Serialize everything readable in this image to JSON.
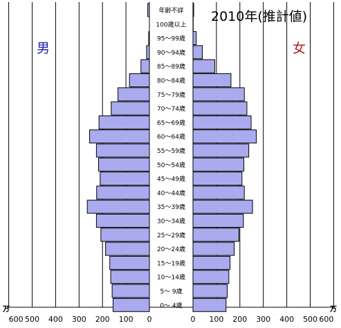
{
  "chart_data": {
    "type": "bar",
    "title": "2010年(推計値)",
    "age_header": "年齢不詳",
    "male_label": "男",
    "female_label": "女",
    "unit": "万",
    "colors": {
      "bar_fill": "#aaaaee",
      "bar_stroke": "#000000",
      "male_label": "#2222aa",
      "female_label": "#aa2222",
      "grid": "#000000"
    },
    "xlim": [
      0,
      600
    ],
    "x_ticks": [
      "600",
      "500",
      "400",
      "300",
      "200",
      "100",
      "0",
      "0",
      "100",
      "200",
      "300",
      "400",
      "500",
      "600"
    ],
    "categories": [
      "年齢不詳",
      "100歳以上",
      "95～99歳",
      "90～94歳",
      "85～89歳",
      "80～84歳",
      "75～79歳",
      "70～74歳",
      "65～69歳",
      "60～64歳",
      "55～59歳",
      "50～54歳",
      "45～49歳",
      "40～44歳",
      "35～39歳",
      "30～34歳",
      "25～29歳",
      "20～24歳",
      "15～19歳",
      "10～14歳",
      "5～ 9歳",
      "0～ 4歳"
    ],
    "series": [
      {
        "name": "男",
        "values": [
          7,
          0,
          3,
          12,
          36,
          85,
          134,
          163,
          215,
          255,
          226,
          217,
          210,
          225,
          265,
          226,
          207,
          187,
          169,
          165,
          159,
          155
        ]
      },
      {
        "name": "女",
        "values": [
          3,
          1,
          14,
          40,
          93,
          162,
          219,
          230,
          248,
          270,
          238,
          217,
          209,
          219,
          254,
          215,
          196,
          176,
          158,
          153,
          146,
          141
        ]
      }
    ],
    "grid": true
  }
}
